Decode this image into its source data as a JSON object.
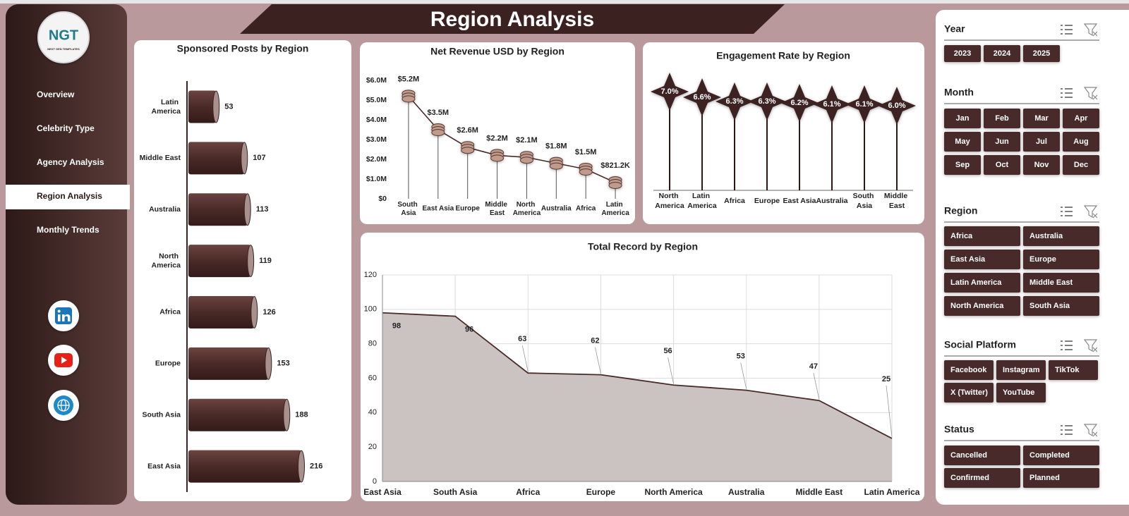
{
  "sidebar": {
    "logo": {
      "title": "NGT",
      "subtitle": "NEXT GEN TEMPLATES"
    },
    "nav": [
      "Overview",
      "Celebrity Type",
      "Agency Analysis",
      "Region Analysis",
      "Monthly Trends"
    ],
    "active": "Region Analysis"
  },
  "header": {
    "title": "Region Analysis"
  },
  "chart_data": [
    {
      "type": "bar",
      "horizontal": true,
      "title": "Sponsored Posts by Region",
      "categories": [
        "Latin America",
        "Middle East",
        "Australia",
        "North America",
        "Africa",
        "Europe",
        "South Asia",
        "East Asia"
      ],
      "values": [
        53,
        107,
        113,
        119,
        126,
        153,
        188,
        216
      ],
      "color": "#4a2a27"
    },
    {
      "type": "line",
      "title": "Net Revenue USD by Region",
      "categories": [
        "South Asia",
        "East Asia",
        "Europe",
        "Middle East",
        "North America",
        "Australia",
        "Africa",
        "Latin America"
      ],
      "values": [
        5200000,
        3500000,
        2600000,
        2200000,
        2100000,
        1800000,
        1500000,
        821200
      ],
      "value_labels": [
        "$5.2M",
        "$3.5M",
        "$2.6M",
        "$2.2M",
        "$2.1M",
        "$1.8M",
        "$1.5M",
        "$821.2K"
      ],
      "ylim": [
        0,
        6000000
      ],
      "yticks": [
        {
          "value": 0,
          "label": "$0"
        },
        {
          "value": 1000000,
          "label": "$1.0M"
        },
        {
          "value": 2000000,
          "label": "$2.0M"
        },
        {
          "value": 3000000,
          "label": "$3.0M"
        },
        {
          "value": 4000000,
          "label": "$4.0M"
        },
        {
          "value": 5000000,
          "label": "$5.0M"
        },
        {
          "value": 6000000,
          "label": "$6.0M"
        }
      ],
      "color": "#4a2a27"
    },
    {
      "type": "lollipop",
      "title": "Engagement Rate by Region",
      "categories": [
        "North America",
        "Latin America",
        "Africa",
        "Europe",
        "East Asia",
        "Australia",
        "South Asia",
        "Middle East"
      ],
      "values": [
        7.0,
        6.6,
        6.3,
        6.3,
        6.2,
        6.1,
        6.1,
        6.0
      ],
      "value_labels": [
        "7.0%",
        "6.6%",
        "6.3%",
        "6.3%",
        "6.2%",
        "6.1%",
        "6.1%",
        "6.0%"
      ],
      "color": "#3d2220"
    },
    {
      "type": "area",
      "title": "Total Record by Region",
      "categories": [
        "East Asia",
        "South Asia",
        "Africa",
        "Europe",
        "North America",
        "Australia",
        "Middle East",
        "Latin America"
      ],
      "values": [
        98,
        96,
        63,
        62,
        56,
        53,
        47,
        25
      ],
      "ylim": [
        0,
        120
      ],
      "yticks": [
        0,
        20,
        40,
        60,
        80,
        100,
        120
      ],
      "grid": true,
      "color": "#cbc2c2",
      "line_color": "#4a2a27"
    }
  ],
  "slicers": [
    {
      "title": "Year",
      "items": [
        "2023",
        "2024",
        "2025"
      ]
    },
    {
      "title": "Month",
      "items": [
        "Jan",
        "Feb",
        "Mar",
        "Apr",
        "May",
        "Jun",
        "Jul",
        "Aug",
        "Sep",
        "Oct",
        "Nov",
        "Dec"
      ]
    },
    {
      "title": "Region",
      "items": [
        "Africa",
        "Australia",
        "East Asia",
        "Europe",
        "Latin America",
        "Middle East",
        "North America",
        "South Asia"
      ]
    },
    {
      "title": "Social Platform",
      "items": [
        "Facebook",
        "Instagram",
        "TikTok",
        "X (Twitter)",
        "YouTube"
      ]
    },
    {
      "title": "Status",
      "items": [
        "Cancelled",
        "Completed",
        "Confirmed",
        "Planned"
      ]
    }
  ]
}
